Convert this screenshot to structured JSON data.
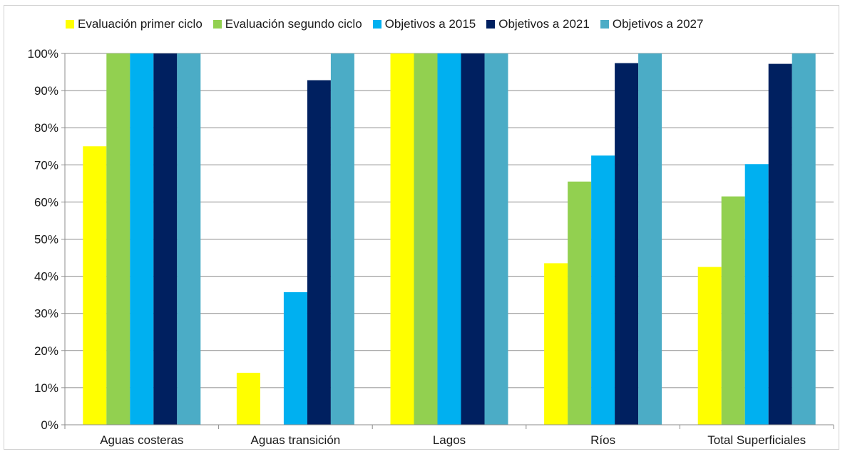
{
  "chart_data": {
    "type": "bar",
    "categories": [
      "Aguas costeras",
      "Aguas transición",
      "Lagos",
      "Ríos",
      "Total Superficiales"
    ],
    "series": [
      {
        "name": "Evaluación primer ciclo",
        "color": "#ffff00",
        "values": [
          75,
          14,
          100,
          43.5,
          42.5
        ]
      },
      {
        "name": "Evaluación segundo ciclo",
        "color": "#92d050",
        "values": [
          100,
          0,
          100,
          65.5,
          61.5
        ]
      },
      {
        "name": "Objetivos a 2015",
        "color": "#00b0f0",
        "values": [
          100,
          35.7,
          100,
          72.5,
          70.2
        ]
      },
      {
        "name": "Objetivos a 2021",
        "color": "#002060",
        "values": [
          100,
          92.8,
          100,
          97.4,
          97.2
        ]
      },
      {
        "name": "Objetivos a 2027",
        "color": "#4bacc6",
        "values": [
          100,
          100,
          100,
          100,
          100
        ]
      }
    ],
    "yticks": [
      "0%",
      "10%",
      "20%",
      "30%",
      "40%",
      "50%",
      "60%",
      "70%",
      "80%",
      "90%",
      "100%"
    ],
    "ylim": [
      0,
      100
    ],
    "grid": true,
    "legend_position": "top",
    "gridline_color": "#8c8c8c"
  }
}
